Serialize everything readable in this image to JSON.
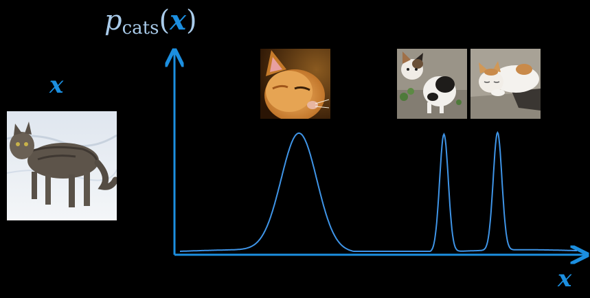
{
  "left_label": "x",
  "title": {
    "p": "p",
    "subscript": "cats",
    "open": "(",
    "arg": "x",
    "close": ")"
  },
  "x_axis_label": "x",
  "colors": {
    "accent": "#1c8fe0",
    "title": "#a9cbea",
    "background": "#000000"
  },
  "images": [
    {
      "name": "tabby-cat-in-snow",
      "icon": "cat-photo"
    },
    {
      "name": "orange-cat-portrait",
      "icon": "cat-photo"
    },
    {
      "name": "black-white-kitten",
      "icon": "cat-photo"
    },
    {
      "name": "sleeping-calico-cat",
      "icon": "cat-photo"
    }
  ],
  "density_curve": {
    "peaks": [
      {
        "center": 0.3,
        "height": 0.92,
        "width": "wide"
      },
      {
        "center": 0.665,
        "height": 0.92,
        "width": "narrow"
      },
      {
        "center": 0.8,
        "height": 0.92,
        "width": "narrow"
      }
    ]
  }
}
